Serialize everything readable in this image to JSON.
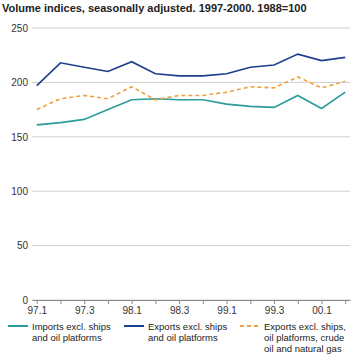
{
  "chart_data": {
    "type": "line",
    "title": "Volume indices, seasonally adjusted. 1997-2000. 1988=100",
    "categories": [
      "97.1",
      null,
      "97.3",
      null,
      "98.1",
      null,
      "98.3",
      null,
      "99.1",
      null,
      "99.3",
      null,
      "00.1",
      null
    ],
    "series": [
      {
        "name": "Imports excl. ships and oil platforms",
        "color": "#2a9d9a",
        "line_style": "solid",
        "values": [
          161,
          163,
          166,
          175,
          184,
          185,
          184,
          184,
          180,
          178,
          177,
          188,
          176,
          191
        ]
      },
      {
        "name": "Exports excl. ships and oil platforms",
        "color": "#1c3f8c",
        "line_style": "solid",
        "values": [
          197,
          218,
          214,
          210,
          219,
          208,
          206,
          206,
          208,
          214,
          216,
          226,
          220,
          223
        ]
      },
      {
        "name": "Exports excl. ships, oil platforms, crude oil and natural gas",
        "color": "#f0a040",
        "line_style": "dashed",
        "values": [
          175,
          185,
          188,
          185,
          196,
          184,
          188,
          188,
          191,
          196,
          195,
          205,
          195,
          201
        ]
      }
    ],
    "ylim": [
      0,
      250
    ],
    "yticks": [
      0,
      50,
      100,
      150,
      200,
      250
    ],
    "grid": true,
    "legend": "bottom"
  }
}
